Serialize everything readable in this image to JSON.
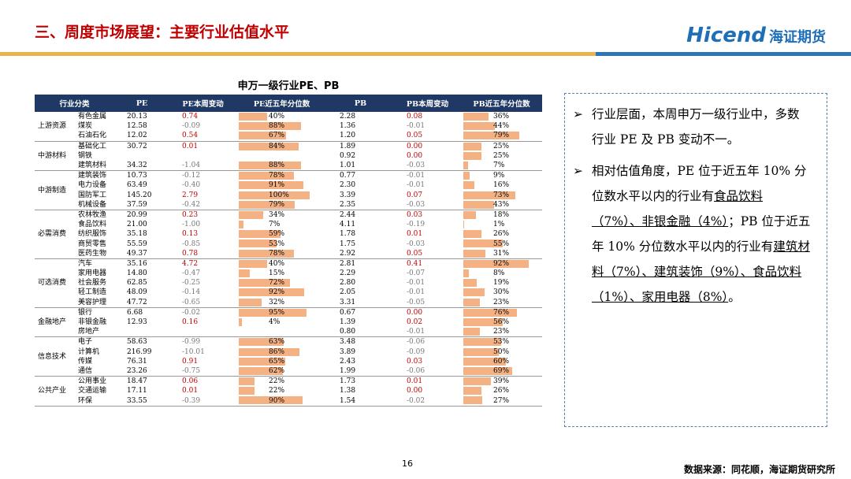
{
  "header": {
    "title": "三、周度市场展望：主要行业估值水平",
    "logo_en": "Hicend",
    "logo_cn": "海证期货"
  },
  "table": {
    "title": "申万一级行业PE、PB",
    "columns": [
      "行业分类",
      "PE",
      "PE本周变动",
      "PE近五年分位数",
      "PB",
      "PB本周变动",
      "PB近五年分位数"
    ],
    "groups": [
      {
        "name": "上游资源",
        "rows": [
          [
            "有色金属",
            "20.13",
            "0.74",
            "40%",
            "2.28",
            "0.08",
            "36%"
          ],
          [
            "煤炭",
            "12.58",
            "-0.09",
            "88%",
            "1.36",
            "-0.01",
            "44%"
          ],
          [
            "石油石化",
            "12.02",
            "0.54",
            "67%",
            "1.20",
            "0.05",
            "79%"
          ]
        ]
      },
      {
        "name": "中游材料",
        "rows": [
          [
            "基础化工",
            "30.72",
            "0.01",
            "84%",
            "1.89",
            "0.00",
            "25%"
          ],
          [
            "钢铁",
            null,
            null,
            null,
            "0.92",
            "0.00",
            "25%"
          ],
          [
            "建筑材料",
            "34.32",
            "-1.04",
            "88%",
            "1.01",
            "-0.03",
            "7%"
          ]
        ]
      },
      {
        "name": "中游制造",
        "rows": [
          [
            "建筑装饰",
            "10.73",
            "-0.12",
            "78%",
            "0.77",
            "-0.01",
            "9%"
          ],
          [
            "电力设备",
            "63.49",
            "-0.40",
            "91%",
            "2.30",
            "-0.01",
            "16%"
          ],
          [
            "国防军工",
            "145.20",
            "2.79",
            "100%",
            "3.39",
            "0.07",
            "73%"
          ],
          [
            "机械设备",
            "37.59",
            "-0.42",
            "79%",
            "2.35",
            "-0.03",
            "43%"
          ]
        ]
      },
      {
        "name": "必需消费",
        "rows": [
          [
            "农林牧渔",
            "20.99",
            "0.23",
            "34%",
            "2.44",
            "0.03",
            "18%"
          ],
          [
            "食品饮料",
            "21.00",
            "-1.00",
            "7%",
            "4.11",
            "-0.19",
            "1%"
          ],
          [
            "纺织服饰",
            "35.18",
            "0.13",
            "59%",
            "1.78",
            "0.01",
            "26%"
          ],
          [
            "商贸零售",
            "55.59",
            "-0.85",
            "53%",
            "1.75",
            "-0.03",
            "55%"
          ],
          [
            "医药生物",
            "49.37",
            "0.78",
            "78%",
            "2.92",
            "0.05",
            "31%"
          ]
        ]
      },
      {
        "name": "可选消费",
        "rows": [
          [
            "汽车",
            "35.16",
            "4.72",
            "40%",
            "2.81",
            "0.41",
            "92%"
          ],
          [
            "家用电器",
            "14.80",
            "-0.47",
            "15%",
            "2.29",
            "-0.07",
            "8%"
          ],
          [
            "社会服务",
            "62.85",
            "-0.25",
            "72%",
            "2.80",
            "-0.01",
            "19%"
          ],
          [
            "轻工制造",
            "48.09",
            "-0.14",
            "92%",
            "2.05",
            "-0.01",
            "30%"
          ],
          [
            "美容护理",
            "47.72",
            "-0.65",
            "32%",
            "3.31",
            "-0.05",
            "23%"
          ]
        ]
      },
      {
        "name": "金融地产",
        "rows": [
          [
            "银行",
            "6.68",
            "-0.02",
            "95%",
            "0.67",
            "0.00",
            "76%"
          ],
          [
            "非银金融",
            "12.93",
            "0.16",
            "4%",
            "1.39",
            "0.02",
            "56%"
          ],
          [
            "房地产",
            null,
            null,
            null,
            "0.80",
            "-0.01",
            "23%"
          ]
        ]
      },
      {
        "name": "信息技术",
        "rows": [
          [
            "电子",
            "58.63",
            "-0.99",
            "63%",
            "3.48",
            "-0.06",
            "53%"
          ],
          [
            "计算机",
            "216.99",
            "-10.01",
            "86%",
            "3.89",
            "-0.09",
            "50%"
          ],
          [
            "传媒",
            "76.31",
            "0.91",
            "65%",
            "2.43",
            "0.03",
            "60%"
          ],
          [
            "通信",
            "23.26",
            "-0.75",
            "62%",
            "1.99",
            "-0.06",
            "69%"
          ]
        ]
      },
      {
        "name": "公共产业",
        "rows": [
          [
            "公用事业",
            "18.47",
            "0.06",
            "22%",
            "1.73",
            "0.01",
            "39%"
          ],
          [
            "交通运输",
            "17.11",
            "0.01",
            "22%",
            "1.38",
            "0.00",
            "26%"
          ],
          [
            "环保",
            "33.55",
            "-0.39",
            "90%",
            "1.54",
            "-0.02",
            "27%"
          ]
        ]
      }
    ]
  },
  "notes": [
    {
      "parts": [
        {
          "text": "行业层面，本周申万一级行业中，多数行业 PE 及 PB 变动不一。",
          "u": false
        }
      ]
    },
    {
      "parts": [
        {
          "text": "相对估值角度，PE 位于近五年 10% 分位数水平以内的行业有",
          "u": false
        },
        {
          "text": "食品饮料（7%）、非银金融（4%）",
          "u": true
        },
        {
          "text": "；PB 位于近五年 10% 分位数水平以内的行业有",
          "u": false
        },
        {
          "text": "建筑材料（7%）、建筑装饰（9%）、食品饮料（1%）、家用电器（8%）",
          "u": true
        },
        {
          "text": "。",
          "u": false
        }
      ]
    }
  ],
  "page_number": "16",
  "source": "数据来源：同花顺，海证期货研究所"
}
